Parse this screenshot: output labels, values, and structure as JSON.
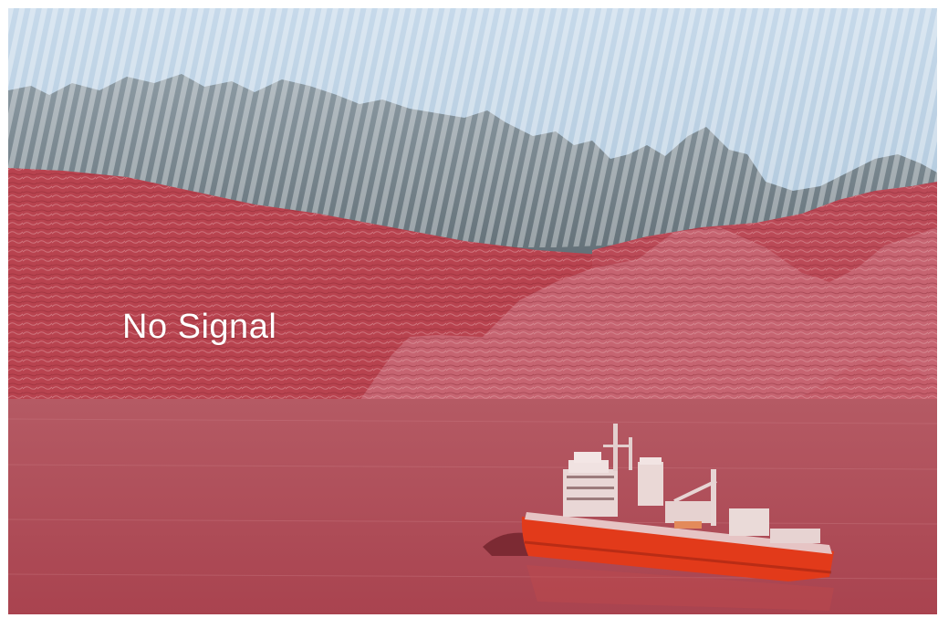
{
  "overlay": {
    "label": "No Signal"
  },
  "scene": {
    "tint_color": "#b8343f",
    "sky_color": "#b9cfe0",
    "ship_hull_color": "#e23a1a"
  }
}
